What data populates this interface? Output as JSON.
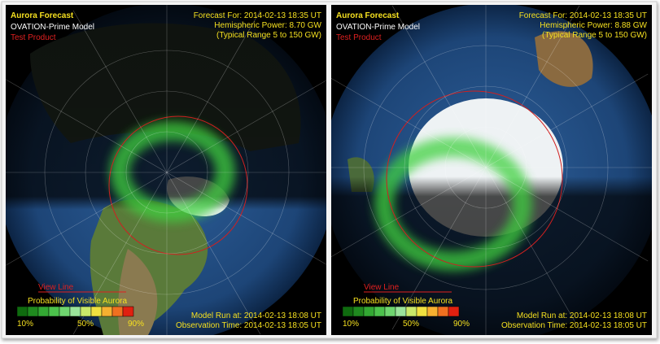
{
  "panels": [
    {
      "title": "Aurora Forecast",
      "model": "OVATION-Prime Model",
      "status": "Test Product",
      "forecast_for": "Forecast For: 2014-02-13 18:35 UT",
      "hemispheric_power": "Hemispheric Power:  8.70 GW",
      "typical_range": "(Typical Range 5 to 150 GW)",
      "view_line": "View Line",
      "legend": {
        "title": "Probability of Visible Aurora",
        "labels": [
          "10%",
          "50%",
          "90%"
        ]
      },
      "model_run": "Model Run at:  2014-02-13 18:08 UT",
      "observation_time": "Observation Time: 2014-02-13 18:05 UT"
    },
    {
      "title": "Aurora Forecast",
      "model": "OVATION-Prime Model",
      "status": "Test Product",
      "forecast_for": "Forecast For: 2014-02-13 18:35 UT",
      "hemispheric_power": "Hemispheric Power:  8.88 GW",
      "typical_range": "(Typical Range 5 to 150 GW)",
      "view_line": "View Line",
      "legend": {
        "title": "Probability of Visible Aurora",
        "labels": [
          "10%",
          "50%",
          "90%"
        ]
      },
      "model_run": "Model Run at:  2014-02-13 18:08 UT",
      "observation_time": "Observation Time: 2014-02-13 18:05 UT"
    }
  ]
}
